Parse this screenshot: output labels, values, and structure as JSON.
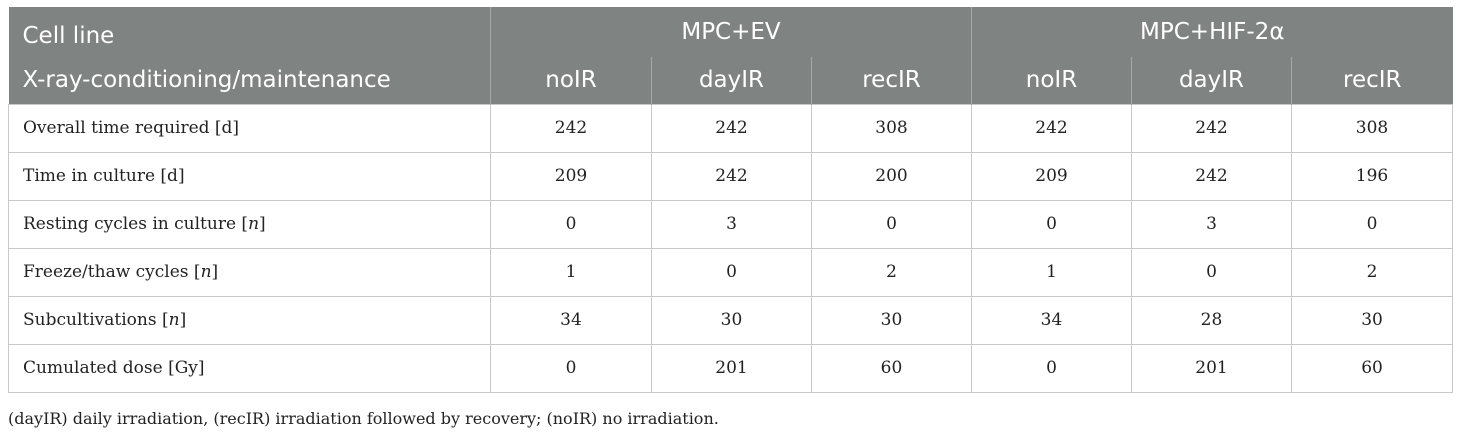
{
  "table": {
    "header_row1": {
      "label": "Cell line",
      "groups": [
        "MPC+EV",
        "MPC+HIF-2α"
      ]
    },
    "header_row2": {
      "label": "X-ray-conditioning/maintenance",
      "columns": [
        "noIR",
        "dayIR",
        "recIR",
        "noIR",
        "dayIR",
        "recIR"
      ]
    },
    "rows": [
      {
        "label": "Overall time required [d]",
        "values": [
          "242",
          "242",
          "308",
          "242",
          "242",
          "308"
        ]
      },
      {
        "label": "Time in culture [d]",
        "values": [
          "209",
          "242",
          "200",
          "209",
          "242",
          "196"
        ]
      },
      {
        "label_prefix": "Resting cycles in culture [",
        "label_unit": "n",
        "label_suffix": "]",
        "values": [
          "0",
          "3",
          "0",
          "0",
          "3",
          "0"
        ]
      },
      {
        "label_prefix": "Freeze/thaw cycles [",
        "label_unit": "n",
        "label_suffix": "]",
        "values": [
          "1",
          "0",
          "2",
          "1",
          "0",
          "2"
        ]
      },
      {
        "label_prefix": "Subcultivations [",
        "label_unit": "n",
        "label_suffix": "]",
        "values": [
          "34",
          "30",
          "30",
          "34",
          "28",
          "30"
        ]
      },
      {
        "label": "Cumulated dose [Gy]",
        "values": [
          "0",
          "201",
          "60",
          "0",
          "201",
          "60"
        ]
      }
    ]
  },
  "footnote": "(dayIR) daily irradiation, (recIR) irradiation followed by recovery; (noIR) no irradiation."
}
